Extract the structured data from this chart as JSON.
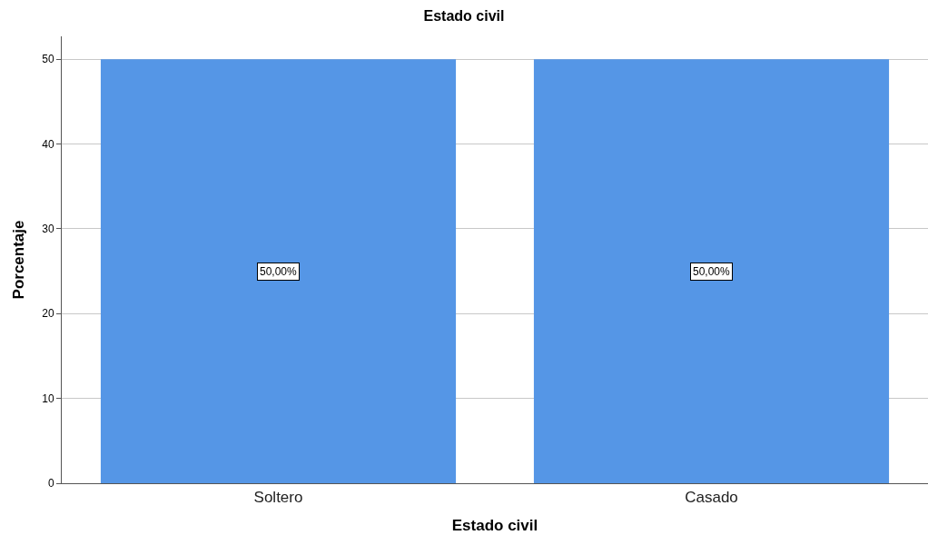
{
  "chart_data": {
    "type": "bar",
    "title": "Estado civil",
    "xlabel": "Estado civil",
    "ylabel": "Porcentaje",
    "categories": [
      "Soltero",
      "Casado"
    ],
    "values": [
      50,
      50
    ],
    "color": "#5596e6",
    "value_labels": [
      "50,00%",
      "50,00%"
    ],
    "ylim": [
      0,
      52.7
    ],
    "yticks": [
      0,
      10,
      20,
      30,
      40,
      50
    ],
    "grid": "y"
  }
}
